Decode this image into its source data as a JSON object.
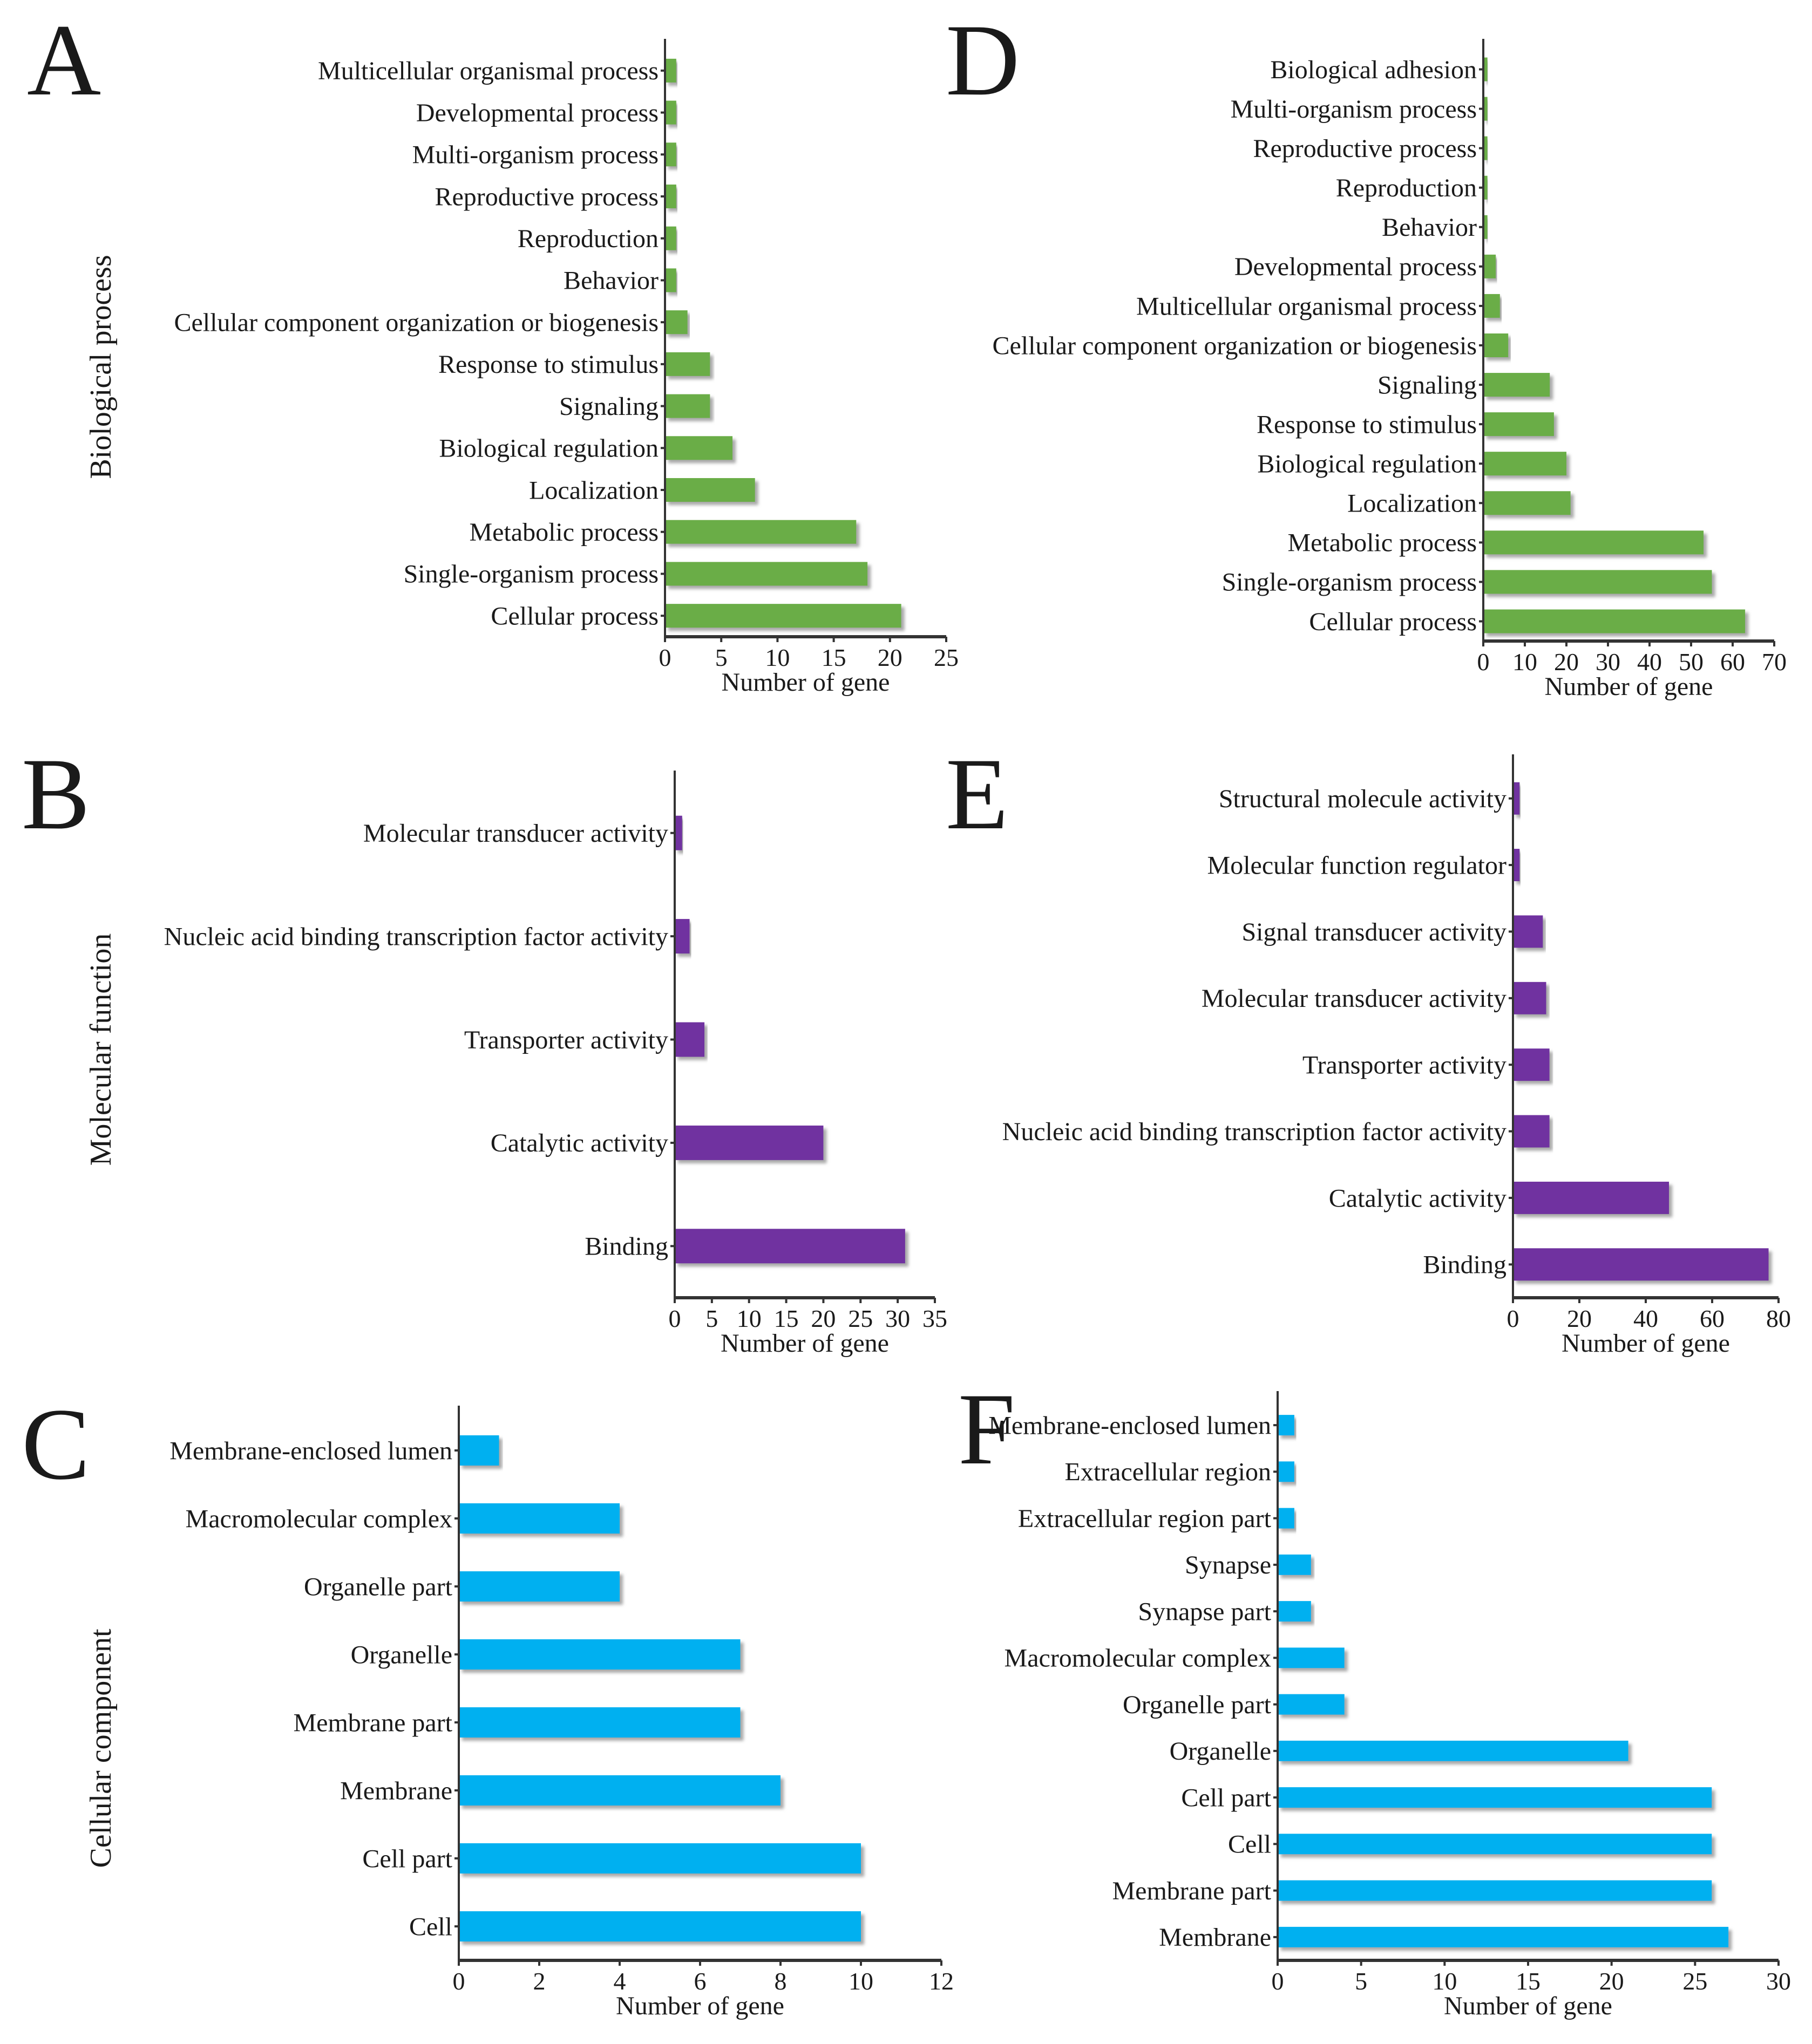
{
  "figure": {
    "row_labels": [
      "Biological process",
      "Molecular function",
      "Cellular component"
    ]
  },
  "colors": {
    "biological_process": "#6aad47",
    "molecular_function": "#7030a0",
    "cellular_component": "#00b0f0",
    "axis": "#333333"
  },
  "chart_data": [
    {
      "panel": "A",
      "type": "bar",
      "orientation": "horizontal",
      "category_group": "Biological process",
      "xlabel": "Number of gene",
      "xlim": [
        0,
        25
      ],
      "xticks": [
        0,
        5,
        10,
        15,
        20,
        25
      ],
      "categories": [
        "Multicellular organismal process",
        "Developmental process",
        "Multi-organism process",
        "Reproductive process",
        "Reproduction",
        "Behavior",
        "Cellular component organization or biogenesis",
        "Response to stimulus",
        "Signaling",
        "Biological regulation",
        "Localization",
        "Metabolic process",
        "Single-organism process",
        "Cellular process"
      ],
      "values": [
        1,
        1,
        1,
        1,
        1,
        1,
        2,
        4,
        4,
        6,
        8,
        17,
        18,
        21
      ]
    },
    {
      "panel": "D",
      "type": "bar",
      "orientation": "horizontal",
      "category_group": "Biological process",
      "xlabel": "Number of gene",
      "xlim": [
        0,
        70
      ],
      "xticks": [
        0,
        10,
        20,
        30,
        40,
        50,
        60,
        70
      ],
      "categories": [
        "Biological adhesion",
        "Multi-organism process",
        "Reproductive process",
        "Reproduction",
        "Behavior",
        "Developmental process",
        "Multicellular organismal process",
        "Cellular component organization or biogenesis",
        "Signaling",
        "Response to stimulus",
        "Biological regulation",
        "Localization",
        "Metabolic process",
        "Single-organism process",
        "Cellular process"
      ],
      "values": [
        1,
        1,
        1,
        1,
        1,
        3,
        4,
        6,
        16,
        17,
        20,
        21,
        53,
        55,
        63
      ]
    },
    {
      "panel": "B",
      "type": "bar",
      "orientation": "horizontal",
      "category_group": "Molecular function",
      "xlabel": "Number of gene",
      "xlim": [
        0,
        35
      ],
      "xticks": [
        0,
        5,
        10,
        15,
        20,
        25,
        30,
        35
      ],
      "categories": [
        "Molecular transducer activity",
        "Nucleic acid binding transcription factor activity",
        "Transporter activity",
        "Catalytic activity",
        "Binding"
      ],
      "values": [
        1,
        2,
        4,
        20,
        31
      ]
    },
    {
      "panel": "E",
      "type": "bar",
      "orientation": "horizontal",
      "category_group": "Molecular function",
      "xlabel": "Number of gene",
      "xlim": [
        0,
        80
      ],
      "xticks": [
        0,
        20,
        40,
        60,
        80
      ],
      "categories": [
        "Structural molecule activity",
        "Molecular function regulator",
        "Signal transducer activity",
        "Molecular transducer activity",
        "Transporter activity",
        "Nucleic acid binding transcription factor activity",
        "Catalytic activity",
        "Binding"
      ],
      "values": [
        2,
        2,
        9,
        10,
        11,
        11,
        47,
        77
      ]
    },
    {
      "panel": "C",
      "type": "bar",
      "orientation": "horizontal",
      "category_group": "Cellular component",
      "xlabel": "Number of gene",
      "xlim": [
        0,
        12
      ],
      "xticks": [
        0,
        2,
        4,
        6,
        8,
        10,
        12
      ],
      "categories": [
        "Membrane-enclosed lumen",
        "Macromolecular complex",
        "Organelle part",
        "Organelle",
        "Membrane part",
        "Membrane",
        "Cell part",
        "Cell"
      ],
      "values": [
        1,
        4,
        4,
        7,
        7,
        8,
        10,
        10
      ]
    },
    {
      "panel": "F",
      "type": "bar",
      "orientation": "horizontal",
      "category_group": "Cellular component",
      "xlabel": "Number of gene",
      "xlim": [
        0,
        30
      ],
      "xticks": [
        0,
        5,
        10,
        15,
        20,
        25,
        30
      ],
      "categories": [
        "Membrane-enclosed lumen",
        "Extracellular region",
        "Extracellular region part",
        "Synapse",
        "Synapse part",
        "Macromolecular complex",
        "Organelle part",
        "Organelle",
        "Cell part",
        "Cell",
        "Membrane part",
        "Membrane"
      ],
      "values": [
        1,
        1,
        1,
        2,
        2,
        4,
        4,
        21,
        26,
        26,
        26,
        27
      ]
    }
  ]
}
